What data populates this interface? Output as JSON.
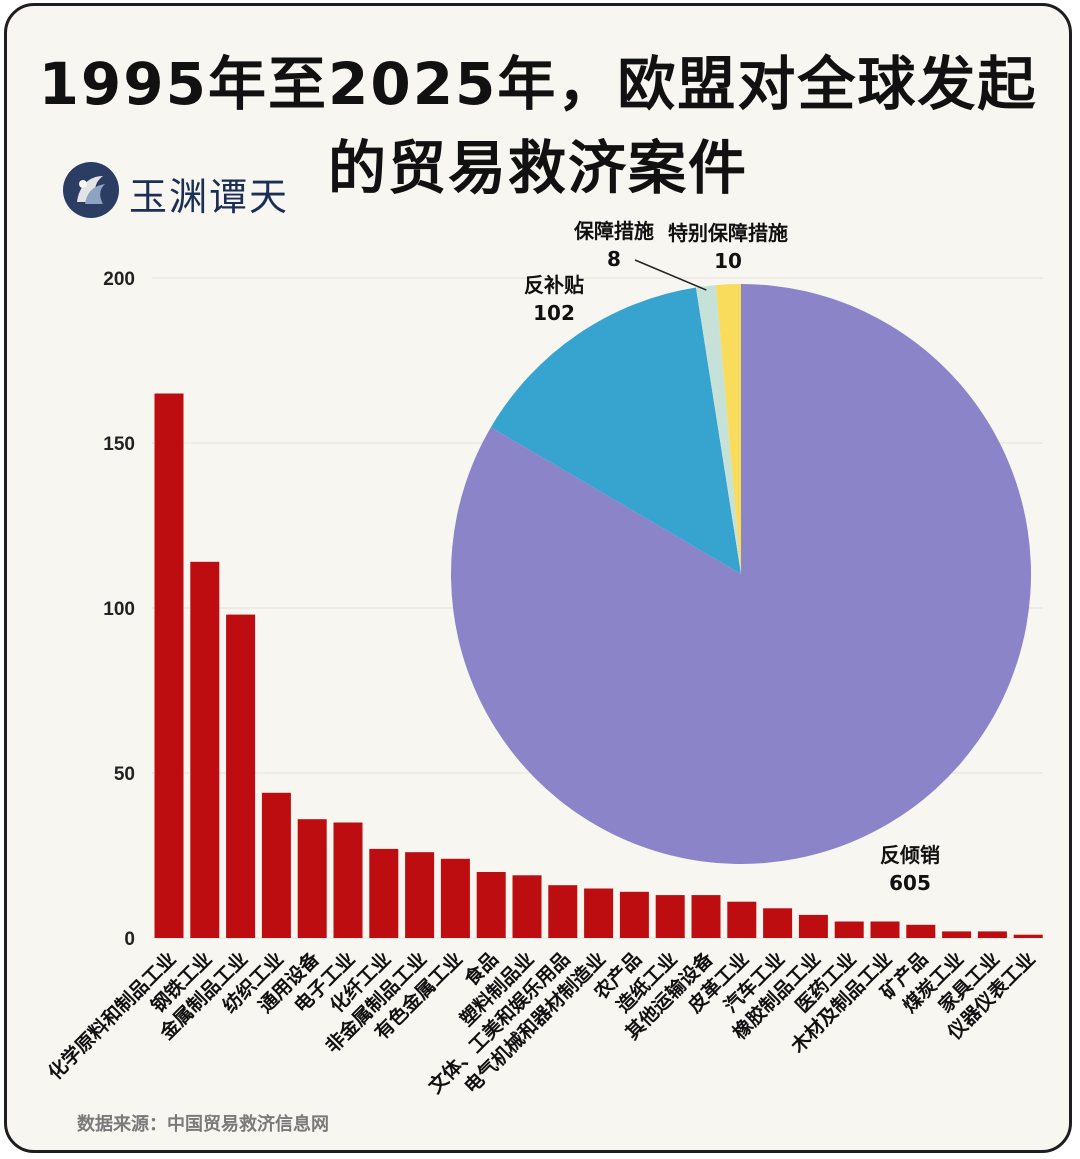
{
  "title": {
    "line1": "1995年至2025年，欧盟对全球发起",
    "line2": "的贸易救济案件"
  },
  "logo": {
    "text": "玉渊谭天",
    "icon": "yuyuantantian-logo-icon"
  },
  "source": "数据来源：中国贸易救济信息网",
  "colors": {
    "bar": "#bd0d10",
    "grid": "#e4e2dc",
    "pie": [
      "#8b84c9",
      "#36a4cf",
      "#c6e1d8",
      "#f9dc5c"
    ]
  },
  "chart_data": [
    {
      "type": "bar",
      "categories": [
        "化学原料和制品工业",
        "钢铁工业",
        "金属制品工业",
        "纺织工业",
        "通用设备",
        "电子工业",
        "化纤工业",
        "非金属制品工业",
        "有色金属工业",
        "食品",
        "塑料制品业",
        "文体、工美和娱乐用品",
        "电气机械和器材制造业",
        "农产品",
        "造纸工业",
        "其他运输设备",
        "皮革工业",
        "汽车工业",
        "橡胶制品工业",
        "医药工业",
        "木材及制品工业",
        "矿产品",
        "煤炭工业",
        "家具工业",
        "仪器仪表工业"
      ],
      "values": [
        165,
        114,
        98,
        44,
        36,
        35,
        27,
        26,
        24,
        20,
        19,
        16,
        15,
        14,
        13,
        13,
        11,
        9,
        7,
        5,
        5,
        4,
        2,
        2,
        1
      ],
      "ylim": [
        0,
        200
      ],
      "yticks": [
        "0",
        "50",
        "100",
        "150",
        "200"
      ],
      "grid": true
    },
    {
      "type": "pie",
      "slices": [
        {
          "label": "反倾销",
          "value": 605,
          "display": "605"
        },
        {
          "label": "反补贴",
          "value": 102,
          "display": "102"
        },
        {
          "label": "保障措施",
          "value": 8,
          "display": "8"
        },
        {
          "label": "特别保障措施",
          "value": 10,
          "display": "10"
        }
      ]
    }
  ]
}
